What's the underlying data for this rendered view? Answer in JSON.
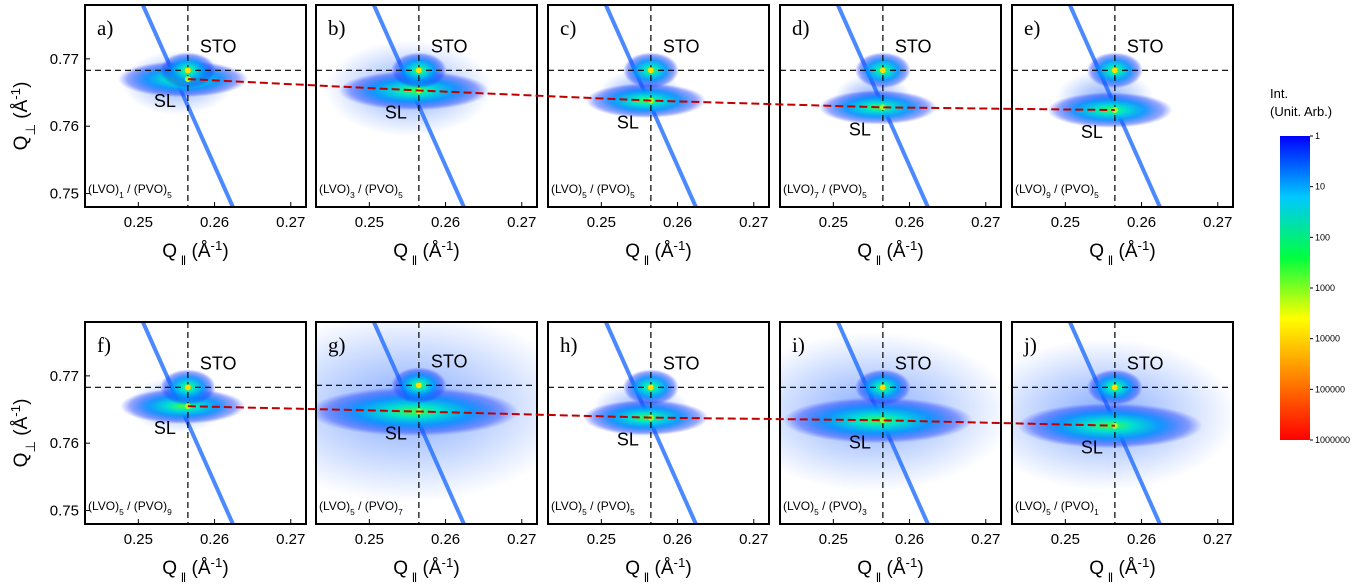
{
  "colorbar": {
    "title": [
      "Int.",
      "(Unit. Arb.)"
    ],
    "log": true,
    "lim": [
      1,
      1000000
    ],
    "ticks": [
      1,
      10,
      100,
      1000,
      10000,
      100000,
      1000000
    ],
    "colors": [
      "#0000ff",
      "#00c8ff",
      "#00ff40",
      "#ffff00",
      "#ff8000",
      "#ff0000"
    ]
  },
  "trend_color": "#c00000",
  "chart_data": [
    {
      "type": "scatter",
      "panel": "a)",
      "sample": [
        "(LVO)",
        "1",
        " / (PVO)",
        "5"
      ],
      "ylabel": [
        "Q",
        "⊥",
        " (Å",
        "-1",
        ")"
      ],
      "xlabel": [
        "Q",
        " ‖",
        " (Å",
        "-1",
        ")"
      ],
      "xlim": [
        0.243,
        0.272
      ],
      "ylim": [
        0.748,
        0.778
      ],
      "xticks": [
        0.25,
        0.26,
        0.27
      ],
      "yticks": [
        0.75,
        0.76,
        0.77
      ],
      "series": [
        {
          "name": "STO",
          "x": [
            0.2565
          ],
          "values": [
            0.7683
          ]
        },
        {
          "name": "SL",
          "x": [
            0.2565
          ],
          "values": [
            0.767
          ]
        }
      ]
    },
    {
      "type": "scatter",
      "panel": "b)",
      "sample": [
        "(LVO)",
        "3",
        " / (PVO)",
        "5"
      ],
      "xlabel": [
        "Q",
        " ‖",
        " (Å",
        "-1",
        ")"
      ],
      "xlim": [
        0.243,
        0.272
      ],
      "ylim": [
        0.748,
        0.778
      ],
      "xticks": [
        0.25,
        0.26,
        0.27
      ],
      "series": [
        {
          "name": "STO",
          "x": [
            0.2565
          ],
          "values": [
            0.7683
          ]
        },
        {
          "name": "SL",
          "x": [
            0.2565
          ],
          "values": [
            0.7653
          ]
        }
      ]
    },
    {
      "type": "scatter",
      "panel": "c)",
      "sample": [
        "(LVO)",
        "5",
        " / (PVO)",
        "5"
      ],
      "xlabel": [
        "Q",
        " ‖",
        " (Å",
        "-1",
        ")"
      ],
      "xlim": [
        0.243,
        0.272
      ],
      "ylim": [
        0.748,
        0.778
      ],
      "xticks": [
        0.25,
        0.26,
        0.27
      ],
      "series": [
        {
          "name": "STO",
          "x": [
            0.2565
          ],
          "values": [
            0.7683
          ]
        },
        {
          "name": "SL",
          "x": [
            0.2565
          ],
          "values": [
            0.7638
          ]
        }
      ]
    },
    {
      "type": "scatter",
      "panel": "d)",
      "sample": [
        "(LVO)",
        "7",
        " / (PVO)",
        "5"
      ],
      "xlabel": [
        "Q",
        " ‖",
        " (Å",
        "-1",
        ")"
      ],
      "xlim": [
        0.243,
        0.272
      ],
      "ylim": [
        0.748,
        0.778
      ],
      "xticks": [
        0.25,
        0.26,
        0.27
      ],
      "series": [
        {
          "name": "STO",
          "x": [
            0.2565
          ],
          "values": [
            0.7683
          ]
        },
        {
          "name": "SL",
          "x": [
            0.2565
          ],
          "values": [
            0.7628
          ]
        }
      ]
    },
    {
      "type": "scatter",
      "panel": "e)",
      "sample": [
        "(LVO)",
        "9",
        " / (PVO)",
        "5"
      ],
      "xlabel": [
        "Q",
        " ‖",
        " (Å",
        "-1",
        ")"
      ],
      "xlim": [
        0.243,
        0.272
      ],
      "ylim": [
        0.748,
        0.778
      ],
      "xticks": [
        0.25,
        0.26,
        0.27
      ],
      "series": [
        {
          "name": "STO",
          "x": [
            0.2565
          ],
          "values": [
            0.7683
          ]
        },
        {
          "name": "SL",
          "x": [
            0.2565
          ],
          "values": [
            0.7624
          ]
        }
      ]
    },
    {
      "type": "scatter",
      "panel": "f)",
      "sample": [
        "(LVO)",
        "5",
        " / (PVO)",
        "9"
      ],
      "ylabel": [
        "Q",
        "⊥",
        " (Å",
        "-1",
        ")"
      ],
      "xlabel": [
        "Q",
        " ‖",
        " (Å",
        "-1",
        ")"
      ],
      "xlim": [
        0.243,
        0.272
      ],
      "ylim": [
        0.748,
        0.778
      ],
      "xticks": [
        0.25,
        0.26,
        0.27
      ],
      "yticks": [
        0.75,
        0.76,
        0.77
      ],
      "series": [
        {
          "name": "STO",
          "x": [
            0.2565
          ],
          "values": [
            0.7683
          ]
        },
        {
          "name": "SL",
          "x": [
            0.2565
          ],
          "values": [
            0.7655
          ]
        }
      ]
    },
    {
      "type": "scatter",
      "panel": "g)",
      "sample": [
        "(LVO)",
        "5",
        " / (PVO)",
        "7"
      ],
      "xlabel": [
        "Q",
        " ‖",
        " (Å",
        "-1",
        ")"
      ],
      "xlim": [
        0.243,
        0.272
      ],
      "ylim": [
        0.748,
        0.778
      ],
      "xticks": [
        0.25,
        0.26,
        0.27
      ],
      "series": [
        {
          "name": "STO",
          "x": [
            0.2565
          ],
          "values": [
            0.7686
          ]
        },
        {
          "name": "SL",
          "x": [
            0.2565
          ],
          "values": [
            0.7647
          ]
        }
      ]
    },
    {
      "type": "scatter",
      "panel": "h)",
      "sample": [
        "(LVO)",
        "5",
        " / (PVO)",
        "5"
      ],
      "xlabel": [
        "Q",
        " ‖",
        " (Å",
        "-1",
        ")"
      ],
      "xlim": [
        0.243,
        0.272
      ],
      "ylim": [
        0.748,
        0.778
      ],
      "xticks": [
        0.25,
        0.26,
        0.27
      ],
      "series": [
        {
          "name": "STO",
          "x": [
            0.2565
          ],
          "values": [
            0.7683
          ]
        },
        {
          "name": "SL",
          "x": [
            0.2565
          ],
          "values": [
            0.7638
          ]
        }
      ]
    },
    {
      "type": "scatter",
      "panel": "i)",
      "sample": [
        "(LVO)",
        "5",
        " / (PVO)",
        "3"
      ],
      "xlabel": [
        "Q",
        " ‖",
        " (Å",
        "-1",
        ")"
      ],
      "xlim": [
        0.243,
        0.272
      ],
      "ylim": [
        0.748,
        0.778
      ],
      "xticks": [
        0.25,
        0.26,
        0.27
      ],
      "series": [
        {
          "name": "STO",
          "x": [
            0.2565
          ],
          "values": [
            0.7683
          ]
        },
        {
          "name": "SL",
          "x": [
            0.2565
          ],
          "values": [
            0.7634
          ]
        }
      ]
    },
    {
      "type": "scatter",
      "panel": "j)",
      "sample": [
        "(LVO)",
        "5",
        " / (PVO)",
        "1"
      ],
      "xlabel": [
        "Q",
        " ‖",
        " (Å",
        "-1",
        ")"
      ],
      "xlim": [
        0.243,
        0.272
      ],
      "ylim": [
        0.748,
        0.778
      ],
      "xticks": [
        0.25,
        0.26,
        0.27
      ],
      "series": [
        {
          "name": "STO",
          "x": [
            0.2565
          ],
          "values": [
            0.7683
          ]
        },
        {
          "name": "SL",
          "x": [
            0.2565
          ],
          "values": [
            0.7626
          ]
        }
      ]
    }
  ]
}
